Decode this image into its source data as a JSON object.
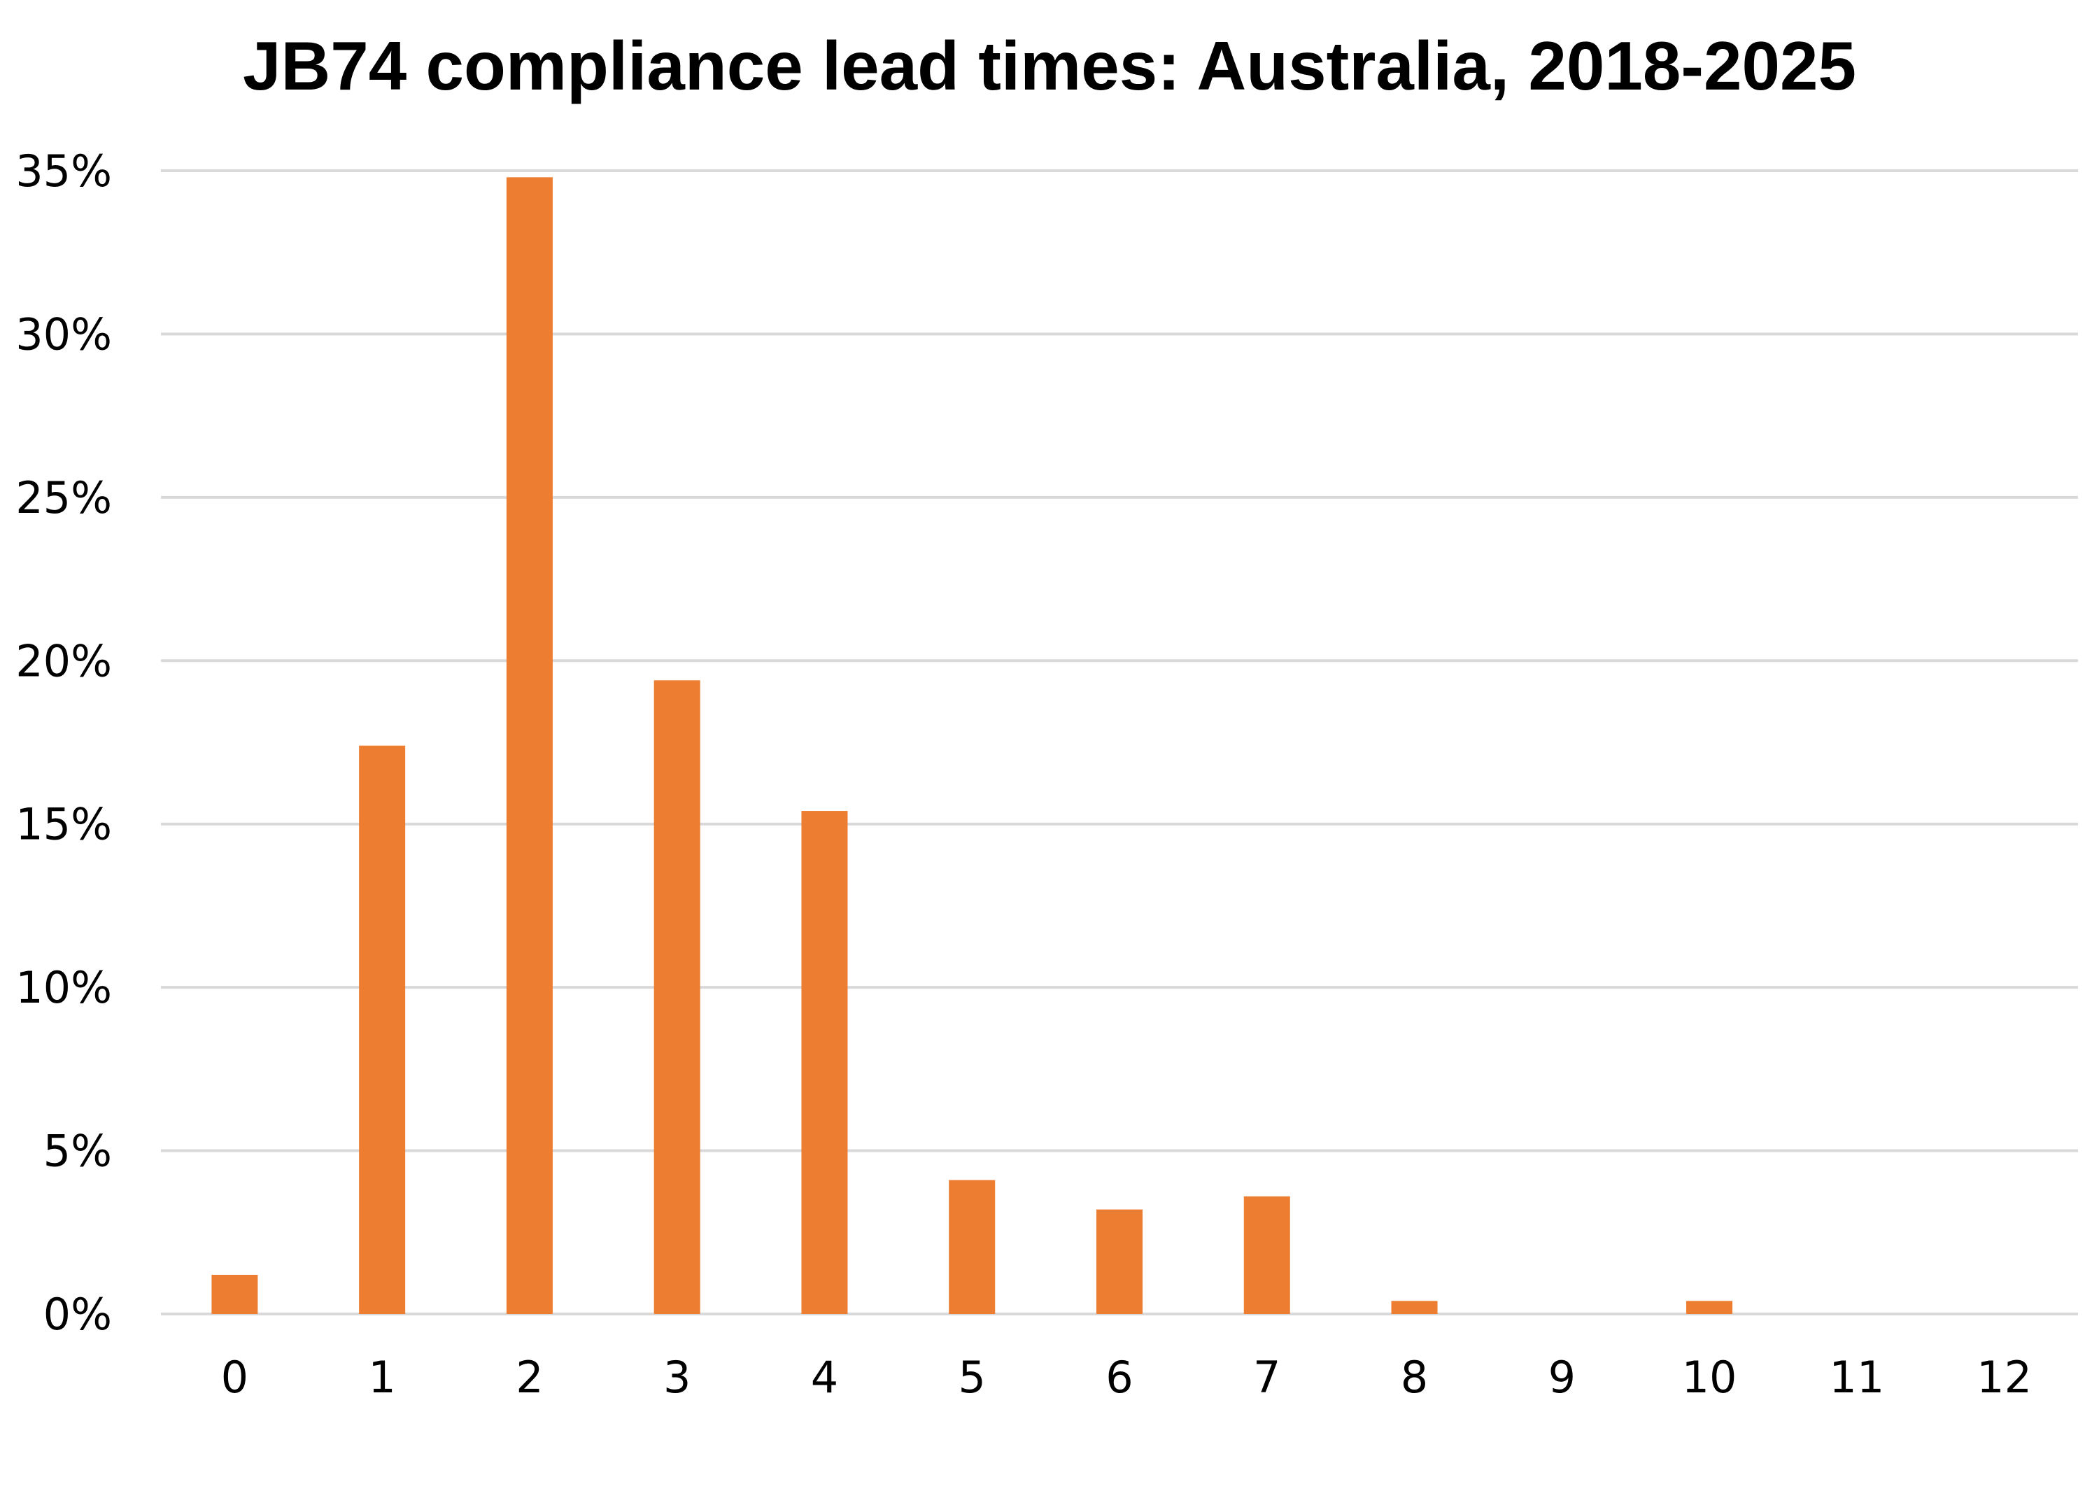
{
  "chart_data": {
    "type": "bar",
    "title": "JB74 compliance lead times: Australia, 2018-2025",
    "xlabel": "",
    "ylabel": "",
    "categories": [
      "0",
      "1",
      "2",
      "3",
      "4",
      "5",
      "6",
      "7",
      "8",
      "9",
      "10",
      "11",
      "12"
    ],
    "series": [
      {
        "values": [
          1.2,
          17.4,
          34.8,
          19.4,
          15.4,
          4.1,
          3.2,
          3.6,
          0.4,
          0,
          0.4,
          0,
          0
        ]
      }
    ],
    "y_tick_labels": [
      "0%",
      "5%",
      "10%",
      "15%",
      "20%",
      "25%",
      "30%",
      "35%"
    ],
    "y_ticks": [
      0,
      5,
      10,
      15,
      20,
      25,
      30,
      35
    ],
    "ylim": [
      0,
      35
    ],
    "y_unit": "%",
    "grid": "horizontal",
    "legend": "none",
    "colors": {
      "bar": "#ED7D31",
      "gridline": "#D9D9D9",
      "text": "#000000"
    }
  }
}
